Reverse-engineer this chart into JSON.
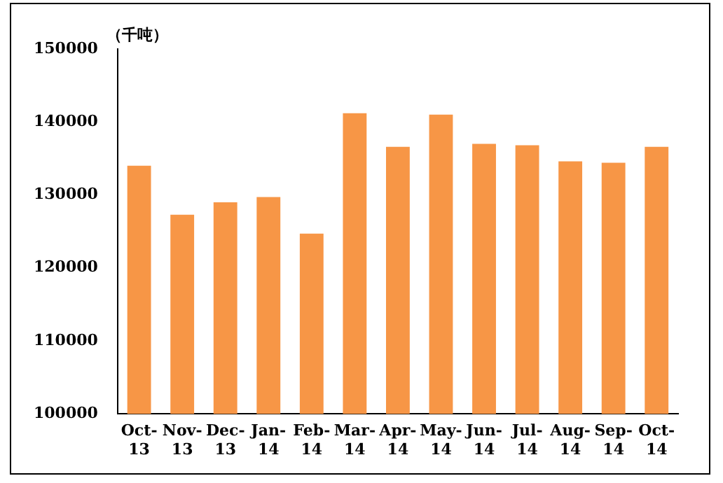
{
  "chart_data": {
    "type": "bar",
    "ylabel": "（千吨）",
    "categories": [
      "Oct-13",
      "Nov-13",
      "Dec-13",
      "Jan-14",
      "Feb-14",
      "Mar-14",
      "Apr-14",
      "May-14",
      "Jun-14",
      "Jul-14",
      "Aug-14",
      "Sep-14",
      "Oct-14"
    ],
    "values": [
      134000,
      127300,
      129000,
      129700,
      124700,
      141200,
      136600,
      141000,
      137000,
      136800,
      134600,
      134400,
      136600
    ],
    "color": "#f79646",
    "ylim": [
      100000,
      150000
    ],
    "yticks": [
      100000,
      110000,
      120000,
      130000,
      140000,
      150000
    ],
    "grid": false,
    "legend": false
  }
}
